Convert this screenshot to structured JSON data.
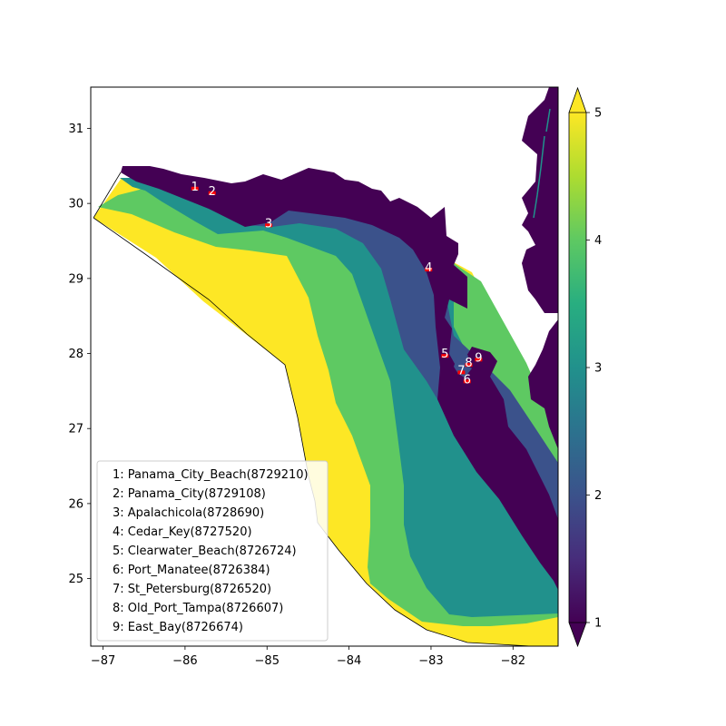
{
  "chart_data": {
    "type": "map",
    "xlim": [
      -87.15,
      -81.45
    ],
    "ylim": [
      24.1,
      31.55
    ],
    "x_ticks": [
      -87,
      -86,
      -85,
      -84,
      -83,
      -82
    ],
    "y_ticks": [
      25,
      26,
      27,
      28,
      29,
      30,
      31
    ],
    "x_tick_labels": [
      "−87",
      "−86",
      "−85",
      "−84",
      "−83",
      "−82"
    ],
    "y_tick_labels": [
      "25",
      "26",
      "27",
      "28",
      "29",
      "30",
      "31"
    ],
    "colorbar": {
      "min": 1,
      "max": 5,
      "ticks": [
        1,
        2,
        3,
        4,
        5
      ],
      "tick_labels": [
        "1",
        "2",
        "3",
        "4",
        "5"
      ],
      "extend": "both",
      "colormap": "viridis"
    },
    "level_colors": {
      "1": "#440154",
      "2": "#3b528b",
      "3": "#21918c",
      "4": "#5ec962",
      "5": "#fde725"
    },
    "marker_color": "#ff0000",
    "stations": [
      {
        "id": "1",
        "name": "Panama_City_Beach",
        "code": "8729210",
        "lon": -85.88,
        "lat": 30.21,
        "legend": "1: Panama_City_Beach(8729210)"
      },
      {
        "id": "2",
        "name": "Panama_City",
        "code": "8729108",
        "lon": -85.67,
        "lat": 30.15,
        "legend": "2: Panama_City(8729108)"
      },
      {
        "id": "3",
        "name": "Apalachicola",
        "code": "8728690",
        "lon": -84.98,
        "lat": 29.72,
        "legend": "3: Apalachicola(8728690)"
      },
      {
        "id": "4",
        "name": "Cedar_Key",
        "code": "8727520",
        "lon": -83.03,
        "lat": 29.13,
        "legend": "4: Cedar_Key(8727520)"
      },
      {
        "id": "5",
        "name": "Clearwater_Beach",
        "code": "8726724",
        "lon": -82.83,
        "lat": 27.98,
        "legend": "5: Clearwater_Beach(8726724)"
      },
      {
        "id": "6",
        "name": "Port_Manatee",
        "code": "8726384",
        "lon": -82.56,
        "lat": 27.64,
        "legend": "6: Port_Manatee(8726384)"
      },
      {
        "id": "7",
        "name": "St_Petersburg",
        "code": "8726520",
        "lon": -82.63,
        "lat": 27.76,
        "legend": "7: St_Petersburg(8726520)"
      },
      {
        "id": "8",
        "name": "Old_Port_Tampa",
        "code": "8726607",
        "lon": -82.54,
        "lat": 27.86,
        "legend": "8: Old_Port_Tampa(8726607)"
      },
      {
        "id": "9",
        "name": "East_Bay",
        "code": "8726674",
        "lon": -82.42,
        "lat": 27.93,
        "legend": "9: East_Bay(8726674)"
      }
    ]
  }
}
